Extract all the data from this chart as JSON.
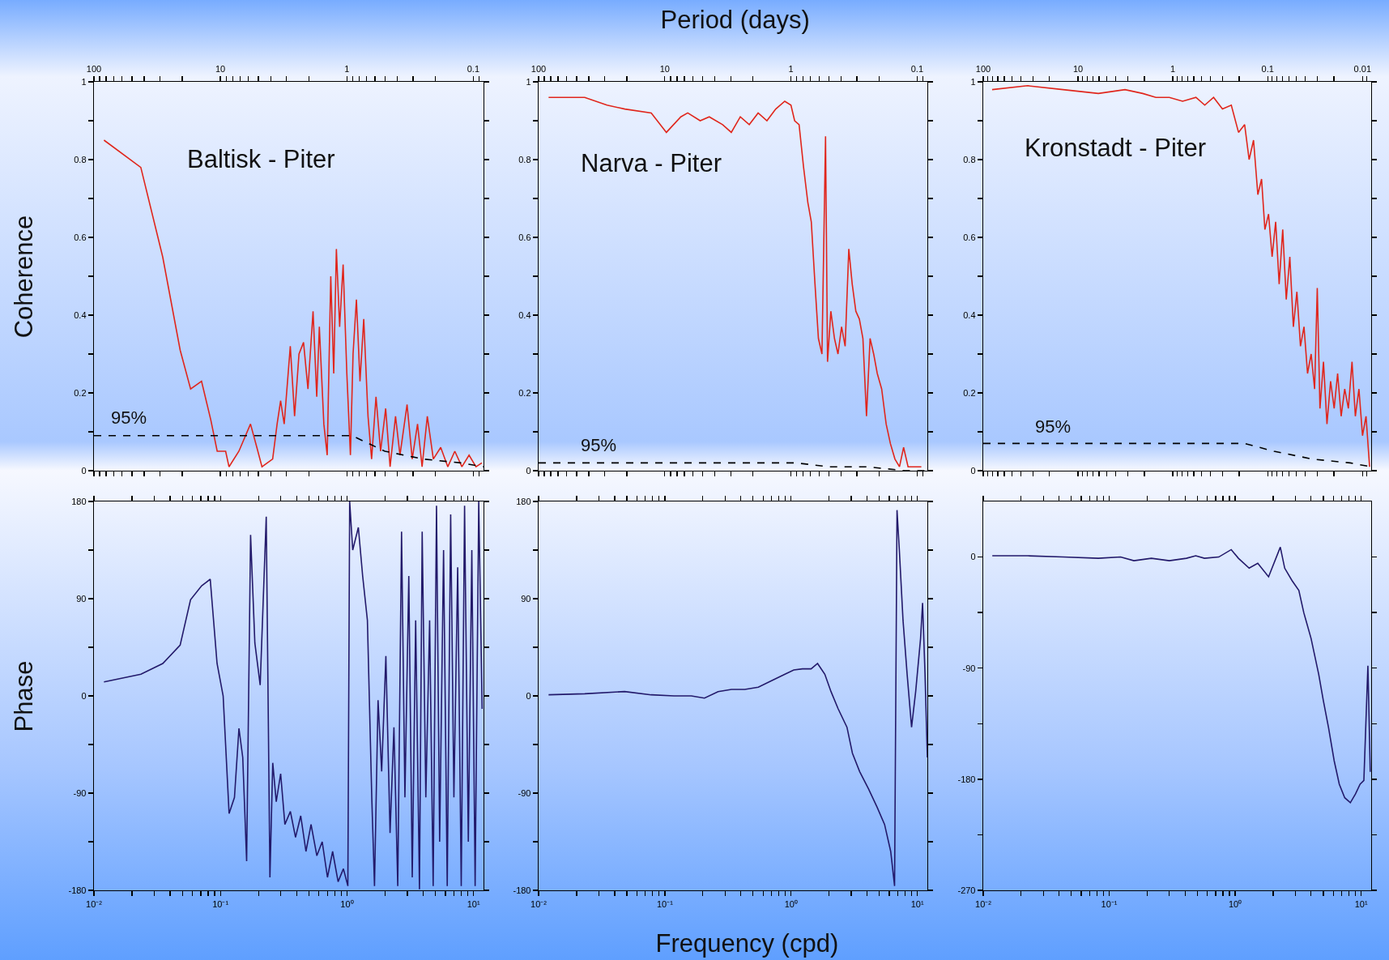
{
  "chart_data": [
    {
      "type": "line",
      "title": "Baltisk - Piter",
      "ylabel": "Coherence",
      "log": "x",
      "xlim": [
        100,
        0.083
      ],
      "xticks": [
        100,
        {
          "value": 90,
          "label": null
        },
        {
          "value": 80,
          "label": null
        },
        {
          "value": 70,
          "label": null
        },
        {
          "value": 60,
          "label": null
        },
        {
          "value": 50,
          "label": null
        },
        {
          "value": 40,
          "label": null
        },
        {
          "value": 30,
          "label": null
        },
        {
          "value": 20,
          "label": null
        },
        10,
        {
          "value": 9,
          "label": null
        },
        {
          "value": 8,
          "label": null
        },
        {
          "value": 7,
          "label": null
        },
        {
          "value": 6,
          "label": null
        },
        {
          "value": 5,
          "label": null
        },
        {
          "value": 4,
          "label": null
        },
        {
          "value": 3,
          "label": null
        },
        {
          "value": 2,
          "label": null
        },
        1,
        {
          "value": 0.9,
          "label": null
        },
        {
          "value": 0.8,
          "label": null
        },
        {
          "value": 0.7,
          "label": null
        },
        {
          "value": 0.6,
          "label": null
        },
        {
          "value": 0.5,
          "label": null
        },
        {
          "value": 0.4,
          "label": null
        },
        {
          "value": 0.3,
          "label": null
        },
        {
          "value": 0.2,
          "label": null
        },
        0.1,
        {
          "value": 0.09,
          "label": null
        }
      ],
      "ylim": [
        0,
        1
      ],
      "yticks": [
        0,
        {
          "value": 0.1,
          "label": null
        },
        0.2,
        {
          "value": 0.3,
          "label": null
        },
        0.4,
        {
          "value": 0.5,
          "label": null
        },
        0.6,
        {
          "value": 0.7,
          "label": null
        },
        0.8,
        {
          "value": 0.9,
          "label": null
        },
        1
      ],
      "series": [
        {
          "color": "#e0261c",
          "x": [
            83.3,
            42.6,
            28.6,
            20.8,
            17.2,
            14.1,
            11.9,
            10.6,
            9.09,
            8.55,
            7.14,
            5.78,
            5.15,
            4.69,
            3.86,
            3.56,
            3.34,
            3.13,
            2.8,
            2.59,
            2.39,
            2.2,
            2.03,
            1.85,
            1.73,
            1.65,
            1.52,
            1.43,
            1.34,
            1.27,
            1.21,
            1.14,
            1.07,
            1,
            0.937,
            0.893,
            0.84,
            0.787,
            0.735,
            0.68,
            0.637,
            0.588,
            0.541,
            0.493,
            0.455,
            0.412,
            0.38,
            0.334,
            0.304,
            0.276,
            0.254,
            0.231,
            0.207,
            0.181,
            0.159,
            0.14,
            0.123,
            0.108,
            0.0952,
            0.0855
          ],
          "values": [
            0.85,
            0.78,
            0.55,
            0.31,
            0.21,
            0.23,
            0.13,
            0.05,
            0.05,
            0.01,
            0.05,
            0.12,
            0.06,
            0.01,
            0.03,
            0.12,
            0.18,
            0.12,
            0.32,
            0.14,
            0.3,
            0.33,
            0.21,
            0.41,
            0.19,
            0.37,
            0.12,
            0.04,
            0.5,
            0.25,
            0.57,
            0.37,
            0.53,
            0.25,
            0.04,
            0.3,
            0.44,
            0.23,
            0.39,
            0.14,
            0.03,
            0.19,
            0.05,
            0.16,
            0.01,
            0.14,
            0.04,
            0.17,
            0.03,
            0.12,
            0.01,
            0.14,
            0.03,
            0.06,
            0.01,
            0.05,
            0.01,
            0.04,
            0.01,
            0.02
          ]
        },
        {
          "color": "#000000",
          "line_style": "dashed",
          "x": [
            100,
            0.909,
            0.5,
            0.25,
            0.125,
            0.0833
          ],
          "values": [
            0.09,
            0.09,
            0.05,
            0.03,
            0.02,
            0.01
          ]
        }
      ],
      "annotations": [
        "95%"
      ]
    },
    {
      "type": "line",
      "title": "Narva - Piter",
      "xlabel": "Period (days)",
      "log": "x",
      "xlim": [
        100,
        0.083
      ],
      "xticks": [
        100,
        {
          "value": 90,
          "label": null
        },
        {
          "value": 80,
          "label": null
        },
        {
          "value": 70,
          "label": null
        },
        {
          "value": 60,
          "label": null
        },
        {
          "value": 50,
          "label": null
        },
        {
          "value": 40,
          "label": null
        },
        {
          "value": 30,
          "label": null
        },
        {
          "value": 20,
          "label": null
        },
        10,
        {
          "value": 9,
          "label": null
        },
        {
          "value": 8,
          "label": null
        },
        {
          "value": 7,
          "label": null
        },
        {
          "value": 6,
          "label": null
        },
        {
          "value": 5,
          "label": null
        },
        {
          "value": 4,
          "label": null
        },
        {
          "value": 3,
          "label": null
        },
        {
          "value": 2,
          "label": null
        },
        1,
        {
          "value": 0.9,
          "label": null
        },
        {
          "value": 0.8,
          "label": null
        },
        {
          "value": 0.7,
          "label": null
        },
        {
          "value": 0.6,
          "label": null
        },
        {
          "value": 0.5,
          "label": null
        },
        {
          "value": 0.4,
          "label": null
        },
        {
          "value": 0.3,
          "label": null
        },
        {
          "value": 0.2,
          "label": null
        },
        0.1,
        {
          "value": 0.09,
          "label": null
        }
      ],
      "ylim": [
        0,
        1
      ],
      "yticks": [
        0,
        {
          "value": 0.1,
          "label": null
        },
        0.2,
        {
          "value": 0.3,
          "label": null
        },
        0.4,
        {
          "value": 0.5,
          "label": null
        },
        0.6,
        {
          "value": 0.7,
          "label": null
        },
        0.8,
        {
          "value": 0.9,
          "label": null
        },
        1
      ],
      "series": [
        {
          "color": "#e0261c",
          "x": [
            83.3,
            43.1,
            28.7,
            20.7,
            12.8,
            9.71,
            7.46,
            6.58,
            5.24,
            4.44,
            3.48,
            2.97,
            2.52,
            2.14,
            1.82,
            1.55,
            1.32,
            1.12,
            1,
            0.935,
            0.862,
            0.794,
            0.735,
            0.69,
            0.645,
            0.606,
            0.568,
            0.532,
            0.513,
            0.483,
            0.452,
            0.424,
            0.397,
            0.372,
            0.348,
            0.327,
            0.306,
            0.287,
            0.269,
            0.252,
            0.236,
            0.221,
            0.207,
            0.191,
            0.176,
            0.163,
            0.15,
            0.138,
            0.128,
            0.118,
            0.108,
            0.0926
          ],
          "values": [
            0.96,
            0.96,
            0.94,
            0.93,
            0.92,
            0.87,
            0.91,
            0.92,
            0.9,
            0.91,
            0.89,
            0.87,
            0.91,
            0.89,
            0.92,
            0.9,
            0.93,
            0.95,
            0.94,
            0.9,
            0.89,
            0.78,
            0.69,
            0.64,
            0.48,
            0.34,
            0.3,
            0.86,
            0.28,
            0.41,
            0.34,
            0.3,
            0.37,
            0.32,
            0.57,
            0.48,
            0.41,
            0.39,
            0.34,
            0.14,
            0.34,
            0.3,
            0.25,
            0.21,
            0.12,
            0.07,
            0.03,
            0.01,
            0.06,
            0.01,
            0.01,
            0.01
          ]
        },
        {
          "color": "#000000",
          "line_style": "dashed",
          "x": [
            100,
            0.909,
            0.5,
            0.25,
            0.125,
            0.0833
          ],
          "values": [
            0.02,
            0.02,
            0.01,
            0.01,
            0,
            0
          ]
        }
      ],
      "annotations": [
        "95%"
      ]
    },
    {
      "type": "line",
      "title": "Kronstadt - Piter",
      "log": "x",
      "xlim": [
        100,
        0.0081
      ],
      "xticks": [
        100,
        {
          "value": 90,
          "label": null
        },
        {
          "value": 80,
          "label": null
        },
        {
          "value": 70,
          "label": null
        },
        {
          "value": 60,
          "label": null
        },
        {
          "value": 50,
          "label": null
        },
        {
          "value": 40,
          "label": null
        },
        {
          "value": 30,
          "label": null
        },
        {
          "value": 20,
          "label": null
        },
        10,
        {
          "value": 9,
          "label": null
        },
        {
          "value": 8,
          "label": null
        },
        {
          "value": 7,
          "label": null
        },
        {
          "value": 6,
          "label": null
        },
        {
          "value": 5,
          "label": null
        },
        {
          "value": 4,
          "label": null
        },
        {
          "value": 3,
          "label": null
        },
        {
          "value": 2,
          "label": null
        },
        1,
        {
          "value": 0.9,
          "label": null
        },
        {
          "value": 0.8,
          "label": null
        },
        {
          "value": 0.7,
          "label": null
        },
        {
          "value": 0.6,
          "label": null
        },
        {
          "value": 0.5,
          "label": null
        },
        {
          "value": 0.4,
          "label": null
        },
        {
          "value": 0.3,
          "label": null
        },
        {
          "value": 0.2,
          "label": null
        },
        0.1,
        {
          "value": 0.09,
          "label": null
        },
        {
          "value": 0.08,
          "label": null
        },
        {
          "value": 0.07,
          "label": null
        },
        {
          "value": 0.06,
          "label": null
        },
        {
          "value": 0.05,
          "label": null
        },
        {
          "value": 0.04,
          "label": null
        },
        {
          "value": 0.03,
          "label": null
        },
        {
          "value": 0.02,
          "label": null
        },
        0.01,
        {
          "value": 0.009,
          "label": null
        }
      ],
      "ylim": [
        0,
        1
      ],
      "yticks": [
        0,
        {
          "value": 0.1,
          "label": null
        },
        0.2,
        {
          "value": 0.3,
          "label": null
        },
        0.4,
        {
          "value": 0.5,
          "label": null
        },
        0.6,
        {
          "value": 0.7,
          "label": null
        },
        0.8,
        {
          "value": 0.9,
          "label": null
        },
        1
      ],
      "series": [
        {
          "color": "#e0261c",
          "x": [
            80.6,
            34.1,
            14.4,
            6.1,
            3.2,
            2.08,
            1.51,
            1.09,
            0.789,
            0.571,
            0.461,
            0.372,
            0.3,
            0.242,
            0.203,
            0.175,
            0.157,
            0.141,
            0.127,
            0.116,
            0.107,
            0.0979,
            0.0898,
            0.0824,
            0.0757,
            0.0694,
            0.0637,
            0.0584,
            0.0536,
            0.0492,
            0.0451,
            0.0414,
            0.038,
            0.0348,
            0.032,
            0.03,
            0.0281,
            0.0258,
            0.0237,
            0.0217,
            0.0199,
            0.0183,
            0.0168,
            0.0154,
            0.0141,
            0.0129,
            0.0119,
            0.0109,
            0.01,
            0.00918,
            0.00842
          ],
          "values": [
            0.98,
            0.99,
            0.98,
            0.97,
            0.98,
            0.97,
            0.96,
            0.96,
            0.95,
            0.96,
            0.94,
            0.96,
            0.93,
            0.94,
            0.87,
            0.89,
            0.8,
            0.85,
            0.71,
            0.75,
            0.62,
            0.66,
            0.55,
            0.64,
            0.48,
            0.62,
            0.44,
            0.55,
            0.37,
            0.46,
            0.32,
            0.37,
            0.25,
            0.3,
            0.21,
            0.47,
            0.16,
            0.28,
            0.12,
            0.23,
            0.16,
            0.25,
            0.14,
            0.21,
            0.16,
            0.28,
            0.14,
            0.21,
            0.09,
            0.14,
            0.01
          ]
        },
        {
          "color": "#000000",
          "line_style": "dashed",
          "x": [
            100,
            0.175,
            0.086,
            0.034,
            0.0135,
            0.0081
          ],
          "values": [
            0.07,
            0.07,
            0.05,
            0.03,
            0.02,
            0.01
          ]
        }
      ],
      "annotations": [
        "95%"
      ]
    },
    {
      "type": "line",
      "ylabel": "Phase",
      "log": "x",
      "xlim": [
        0.01,
        12
      ],
      "xticks": [
        {
          "value": 0.01,
          "label": "10⁻²"
        },
        {
          "value": 0.02,
          "label": null
        },
        {
          "value": 0.03,
          "label": null
        },
        {
          "value": 0.04,
          "label": null
        },
        {
          "value": 0.05,
          "label": null
        },
        {
          "value": 0.06,
          "label": null
        },
        {
          "value": 0.07,
          "label": null
        },
        {
          "value": 0.08,
          "label": null
        },
        {
          "value": 0.09,
          "label": null
        },
        {
          "value": 0.1,
          "label": "10⁻¹"
        },
        {
          "value": 0.2,
          "label": null
        },
        {
          "value": 0.3,
          "label": null
        },
        {
          "value": 0.4,
          "label": null
        },
        {
          "value": 0.5,
          "label": null
        },
        {
          "value": 0.6,
          "label": null
        },
        {
          "value": 0.7,
          "label": null
        },
        {
          "value": 0.8,
          "label": null
        },
        {
          "value": 0.9,
          "label": null
        },
        {
          "value": 1,
          "label": "10⁰"
        },
        {
          "value": 2,
          "label": null
        },
        {
          "value": 3,
          "label": null
        },
        {
          "value": 4,
          "label": null
        },
        {
          "value": 5,
          "label": null
        },
        {
          "value": 6,
          "label": null
        },
        {
          "value": 7,
          "label": null
        },
        {
          "value": 8,
          "label": null
        },
        {
          "value": 9,
          "label": null
        },
        {
          "value": 10,
          "label": "10¹"
        }
      ],
      "ylim": [
        -180,
        180
      ],
      "yticks": [
        -180,
        {
          "value": -135,
          "label": null
        },
        -90,
        {
          "value": -45,
          "label": null
        },
        0,
        {
          "value": 45,
          "label": null
        },
        90,
        {
          "value": 135,
          "label": null
        },
        180
      ],
      "series": [
        {
          "color": "#231a6b",
          "x": [
            0.012,
            0.0235,
            0.035,
            0.048,
            0.058,
            0.071,
            0.083,
            0.094,
            0.105,
            0.117,
            0.129,
            0.14,
            0.15,
            0.161,
            0.173,
            0.187,
            0.206,
            0.23,
            0.246,
            0.259,
            0.276,
            0.299,
            0.323,
            0.357,
            0.392,
            0.431,
            0.474,
            0.52,
            0.578,
            0.637,
            0.701,
            0.77,
            0.851,
            0.937,
            1.016,
            1.05,
            1.11,
            1.23,
            1.33,
            1.45,
            1.57,
            1.65,
            1.76,
            1.88,
            2.03,
            2.19,
            2.35,
            2.52,
            2.7,
            2.87,
            3.08,
            3.28,
            3.49,
            3.74,
            3.93,
            4.2,
            4.5,
            4.8,
            5.1,
            5.4,
            5.8,
            6.2,
            6.6,
            7.0,
            7.5,
            8.0,
            8.5,
            9.1,
            9.7,
            10.3,
            11.0,
            11.7
          ],
          "values": [
            13,
            20,
            30,
            47,
            89,
            102,
            108,
            30,
            0,
            -109,
            -94,
            -30,
            -57,
            -153,
            149,
            49,
            10,
            166,
            -168,
            -62,
            -98,
            -72,
            -119,
            -107,
            -131,
            -111,
            -144,
            -119,
            -148,
            -135,
            -168,
            -144,
            -172,
            -160,
            -176,
            180,
            135,
            156,
            111,
            70,
            -94,
            -176,
            -4,
            -70,
            37,
            -127,
            -29,
            -176,
            152,
            -94,
            111,
            -168,
            70,
            -179,
            152,
            -94,
            70,
            -176,
            176,
            -135,
            135,
            -176,
            168,
            -94,
            119,
            -176,
            176,
            -135,
            135,
            -176,
            180,
            -12
          ]
        }
      ]
    },
    {
      "type": "line",
      "xlabel": "Frequency (cpd)",
      "log": "x",
      "xlim": [
        0.01,
        12
      ],
      "xticks": [
        {
          "value": 0.01,
          "label": "10⁻²"
        },
        {
          "value": 0.02,
          "label": null
        },
        {
          "value": 0.03,
          "label": null
        },
        {
          "value": 0.04,
          "label": null
        },
        {
          "value": 0.05,
          "label": null
        },
        {
          "value": 0.06,
          "label": null
        },
        {
          "value": 0.07,
          "label": null
        },
        {
          "value": 0.08,
          "label": null
        },
        {
          "value": 0.09,
          "label": null
        },
        {
          "value": 0.1,
          "label": "10⁻¹"
        },
        {
          "value": 0.2,
          "label": null
        },
        {
          "value": 0.3,
          "label": null
        },
        {
          "value": 0.4,
          "label": null
        },
        {
          "value": 0.5,
          "label": null
        },
        {
          "value": 0.6,
          "label": null
        },
        {
          "value": 0.7,
          "label": null
        },
        {
          "value": 0.8,
          "label": null
        },
        {
          "value": 0.9,
          "label": null
        },
        {
          "value": 1,
          "label": "10⁰"
        },
        {
          "value": 2,
          "label": null
        },
        {
          "value": 3,
          "label": null
        },
        {
          "value": 4,
          "label": null
        },
        {
          "value": 5,
          "label": null
        },
        {
          "value": 6,
          "label": null
        },
        {
          "value": 7,
          "label": null
        },
        {
          "value": 8,
          "label": null
        },
        {
          "value": 9,
          "label": null
        },
        {
          "value": 10,
          "label": "10¹"
        }
      ],
      "ylim": [
        -180,
        180
      ],
      "yticks": [
        -180,
        {
          "value": -135,
          "label": null
        },
        -90,
        {
          "value": -45,
          "label": null
        },
        0,
        {
          "value": 45,
          "label": null
        },
        90,
        {
          "value": 135,
          "label": null
        },
        180
      ],
      "series": [
        {
          "color": "#231a6b",
          "x": [
            0.012,
            0.0232,
            0.048,
            0.078,
            0.118,
            0.162,
            0.206,
            0.264,
            0.337,
            0.43,
            0.55,
            0.7,
            0.893,
            1.05,
            1.23,
            1.44,
            1.62,
            1.85,
            2.07,
            2.36,
            2.77,
            3.06,
            3.49,
            4.1,
            4.8,
            5.5,
            6.15,
            6.6,
            6.9,
            7.2,
            7.7,
            8.3,
            9.0,
            9.7,
            10.6,
            11.0,
            11.5,
            12.0
          ],
          "values": [
            1,
            2,
            4,
            1,
            0,
            0,
            -2,
            4,
            6,
            6,
            8,
            14,
            20,
            24,
            25,
            25,
            30,
            20,
            4,
            -12,
            -29,
            -53,
            -70,
            -86,
            -103,
            -119,
            -144,
            -176,
            172,
            135,
            70,
            20,
            -29,
            4,
            53,
            86,
            20,
            -57
          ]
        }
      ]
    },
    {
      "type": "line",
      "log": "x",
      "xlim": [
        0.01,
        12
      ],
      "xticks": [
        {
          "value": 0.01,
          "label": "10⁻²"
        },
        {
          "value": 0.02,
          "label": null
        },
        {
          "value": 0.03,
          "label": null
        },
        {
          "value": 0.04,
          "label": null
        },
        {
          "value": 0.05,
          "label": null
        },
        {
          "value": 0.06,
          "label": null
        },
        {
          "value": 0.07,
          "label": null
        },
        {
          "value": 0.08,
          "label": null
        },
        {
          "value": 0.09,
          "label": null
        },
        {
          "value": 0.1,
          "label": "10⁻¹"
        },
        {
          "value": 0.2,
          "label": null
        },
        {
          "value": 0.3,
          "label": null
        },
        {
          "value": 0.4,
          "label": null
        },
        {
          "value": 0.5,
          "label": null
        },
        {
          "value": 0.6,
          "label": null
        },
        {
          "value": 0.7,
          "label": null
        },
        {
          "value": 0.8,
          "label": null
        },
        {
          "value": 0.9,
          "label": null
        },
        {
          "value": 1,
          "label": "10⁰"
        },
        {
          "value": 2,
          "label": null
        },
        {
          "value": 3,
          "label": null
        },
        {
          "value": 4,
          "label": null
        },
        {
          "value": 5,
          "label": null
        },
        {
          "value": 6,
          "label": null
        },
        {
          "value": 7,
          "label": null
        },
        {
          "value": 8,
          "label": null
        },
        {
          "value": 9,
          "label": null
        },
        {
          "value": 10,
          "label": "10¹"
        }
      ],
      "ylim": [
        -270,
        45
      ],
      "yticks": [
        -270,
        {
          "value": -225,
          "label": null
        },
        -180,
        {
          "value": -135,
          "label": null
        },
        -90,
        {
          "value": -45,
          "label": null
        },
        0
      ],
      "series": [
        {
          "color": "#231a6b",
          "x": [
            0.0118,
            0.0225,
            0.043,
            0.082,
            0.123,
            0.157,
            0.216,
            0.3,
            0.41,
            0.486,
            0.57,
            0.74,
            0.93,
            1.06,
            1.29,
            1.51,
            1.84,
            2.28,
            2.47,
            2.82,
            3.2,
            3.5,
            4.0,
            4.6,
            5.0,
            5.5,
            6.1,
            6.7,
            7.4,
            8.2,
            9.0,
            9.8,
            10.5,
            11.3,
            11.8
          ],
          "values": [
            1,
            1,
            0,
            -1,
            0,
            -3,
            -1,
            -3,
            -1,
            1,
            -1,
            0,
            6,
            -1,
            -9,
            -5,
            -16,
            8,
            -9,
            -19,
            -27,
            -45,
            -66,
            -95,
            -116,
            -138,
            -165,
            -184,
            -195,
            -199,
            -192,
            -184,
            -181,
            -88,
            -174
          ]
        }
      ]
    }
  ]
}
